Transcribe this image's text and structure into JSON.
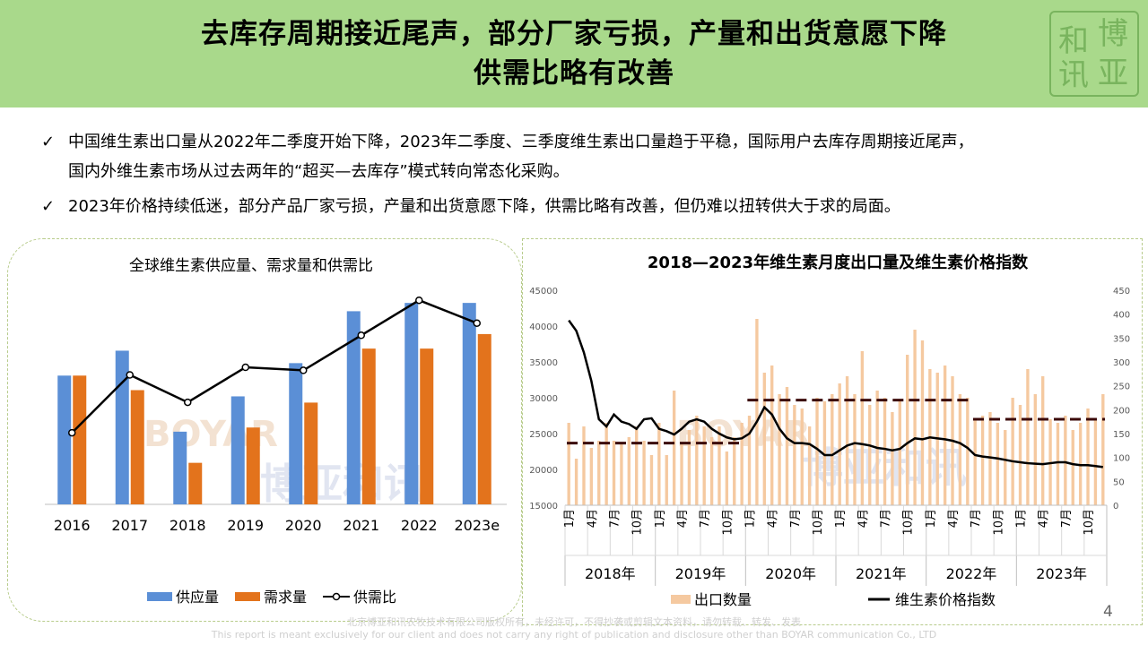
{
  "header": {
    "title_line1": "去库存周期接近尾声，部分厂家亏损，产量和出货意愿下降",
    "title_line2": "供需比略有改善",
    "seal_chars": [
      "博",
      "亚",
      "和",
      "讯"
    ]
  },
  "bullets": [
    {
      "mark": "✓",
      "text": "中国维生素出口量从2022年二季度开始下降，2023年二季度、三季度维生素出口量趋于平稳，国际用户去库存周期接近尾声，"
    },
    {
      "mark": "",
      "text": "国内外维生素市场从过去两年的“超买—去库存”模式转向常态化采购。"
    },
    {
      "mark": "✓",
      "text": "2023年价格持续低迷，部分产品厂家亏损，产量和出货意愿下降，供需比略有改善，但仍难以扭转供大于求的局面。"
    }
  ],
  "watermark": {
    "brand": "BOYAR",
    "name": "博亚和讯"
  },
  "chart_data": [
    {
      "type": "bar",
      "title": "全球维生素供应量、需求量和供需比",
      "categories": [
        "2016",
        "2017",
        "2018",
        "2019",
        "2020",
        "2021",
        "2022",
        "2023e"
      ],
      "series": [
        {
          "name": "供应量",
          "type": "bar",
          "color": "#5b8fd6",
          "values": [
            62,
            74,
            35,
            52,
            68,
            93,
            97,
            97
          ]
        },
        {
          "name": "需求量",
          "type": "bar",
          "color": "#e3731c",
          "values": [
            62,
            55,
            20,
            37,
            49,
            75,
            75,
            82
          ]
        },
        {
          "name": "供需比",
          "type": "line",
          "color": "#000000",
          "values": [
            0.97,
            1.35,
            1.17,
            1.4,
            1.38,
            1.61,
            1.84,
            1.69
          ]
        }
      ],
      "ylim_bars": [
        0,
        110
      ],
      "ylim_ratio": [
        0.5,
        2.0
      ],
      "legend": "bottom"
    },
    {
      "type": "bar+line",
      "title": "2018—2023年维生素月度出口量及维生素价格指数",
      "left_axis": {
        "min": 15000,
        "max": 45000,
        "ticks": [
          15000,
          20000,
          25000,
          30000,
          35000,
          40000,
          45000
        ]
      },
      "right_axis": {
        "min": 0,
        "max": 450,
        "ticks": [
          0,
          50,
          100,
          150,
          200,
          250,
          300,
          350,
          400,
          450
        ]
      },
      "month_labels": [
        "1月",
        "4月",
        "7月",
        "10月"
      ],
      "years": [
        "2018年",
        "2019年",
        "2020年",
        "2021年",
        "2022年",
        "2023年"
      ],
      "series": [
        {
          "name": "出口数量",
          "type": "bar",
          "color": "#f5c9a0",
          "values": [
            26500,
            21500,
            26000,
            23000,
            24000,
            26500,
            24000,
            23500,
            24500,
            26000,
            24000,
            22000,
            26500,
            22000,
            31000,
            23500,
            25500,
            27500,
            26000,
            24500,
            26000,
            22500,
            24500,
            26500,
            27500,
            41000,
            33500,
            34500,
            30500,
            31500,
            29000,
            28500,
            26000,
            30000,
            29500,
            30500,
            32000,
            33000,
            30500,
            36500,
            29000,
            31000,
            30000,
            28000,
            29500,
            36000,
            39500,
            38000,
            34000,
            33500,
            34500,
            33000,
            30500,
            30000,
            27000,
            27500,
            28000,
            26500,
            25500,
            30000,
            29000,
            34000,
            30500,
            33000,
            27000,
            26500,
            27500,
            25500,
            26500,
            28500,
            27000,
            30500
          ]
        },
        {
          "name": "维生素价格指数",
          "type": "line",
          "color": "#000000",
          "values": [
            387,
            365,
            320,
            260,
            180,
            165,
            190,
            175,
            170,
            160,
            180,
            182,
            160,
            155,
            148,
            160,
            175,
            180,
            175,
            160,
            150,
            142,
            138,
            140,
            150,
            175,
            205,
            190,
            160,
            140,
            130,
            130,
            128,
            118,
            105,
            105,
            115,
            125,
            130,
            128,
            125,
            120,
            118,
            115,
            118,
            130,
            140,
            138,
            142,
            140,
            138,
            135,
            130,
            120,
            105,
            102,
            100,
            98,
            95,
            92,
            90,
            88,
            87,
            86,
            88,
            90,
            90,
            86,
            84,
            84,
            82,
            80
          ]
        }
      ],
      "reference_lines": [
        {
          "label": "2018-2019",
          "value": 130
        },
        {
          "label": "2020-2022H1",
          "value": 220
        },
        {
          "label": "2022H2-2023",
          "value": 180
        }
      ],
      "legend": "bottom"
    }
  ],
  "page_number": "4",
  "footer": {
    "line1": "北京博亚和讯农牧技术有限公司版权所有，未经许可，不得抄袭或剪辑文本资料，请勿转载、转发、发表",
    "line2": "This report is meant exclusively for our client and does not carry any right of publication and disclosure other than BOYAR communication Co., LTD"
  }
}
